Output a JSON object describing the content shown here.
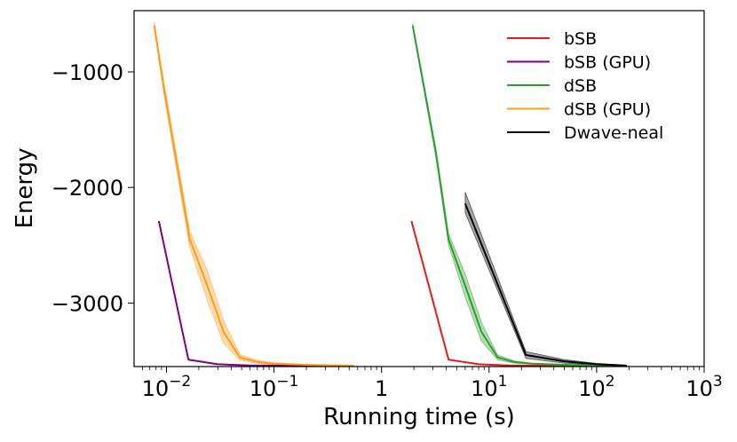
{
  "chart_data": {
    "type": "line",
    "xscale": "log",
    "xlabel": "Running time (s)",
    "ylabel": "Energy",
    "xlim": [
      0.005,
      1000
    ],
    "ylim": [
      -3550,
      -470
    ],
    "x_ticks": [
      {
        "value": 0.01,
        "base": "10",
        "exp": "−2"
      },
      {
        "value": 0.1,
        "base": "10",
        "exp": "−1"
      },
      {
        "value": 1,
        "base": "1",
        "exp": ""
      },
      {
        "value": 10,
        "base": "10",
        "exp": "1"
      },
      {
        "value": 100,
        "base": "10",
        "exp": "2"
      },
      {
        "value": 1000,
        "base": "10",
        "exp": "3"
      }
    ],
    "y_ticks": [
      {
        "value": -1000,
        "label": "−1000"
      },
      {
        "value": -2000,
        "label": "−2000"
      },
      {
        "value": -3000,
        "label": "−3000"
      }
    ],
    "legend_position": "top-right",
    "series": [
      {
        "name": "bSB",
        "color": "#e41a1c",
        "band": 0,
        "x": [
          1.9,
          4.2,
          8.0,
          15,
          40,
          100,
          190
        ],
        "y": [
          -2290,
          -3490,
          -3530,
          -3540,
          -3542,
          -3543,
          -3543
        ]
      },
      {
        "name": "bSB (GPU)",
        "color": "#800080",
        "band": 0,
        "x": [
          0.0085,
          0.016,
          0.03,
          0.06,
          0.15,
          0.55
        ],
        "y": [
          -2290,
          -3490,
          -3530,
          -3540,
          -3542,
          -3543
        ]
      },
      {
        "name": "dSB",
        "color": "#2ca02c",
        "band": 1,
        "x": [
          1.95,
          2.5,
          3.2,
          4.2,
          6.0,
          8.5,
          12.0,
          17.0,
          25,
          50,
          100,
          190
        ],
        "y": [
          -600,
          -1150,
          -1700,
          -2450,
          -2850,
          -3250,
          -3470,
          -3510,
          -3525,
          -3535,
          -3540,
          -3542
        ],
        "lower": [
          -620,
          -1180,
          -1740,
          -2500,
          -2950,
          -3330,
          -3490,
          -3520,
          -3530,
          -3538,
          -3542,
          -3544
        ],
        "upper": [
          -580,
          -1120,
          -1660,
          -2400,
          -2750,
          -3170,
          -3450,
          -3500,
          -3520,
          -3532,
          -3538,
          -3540
        ]
      },
      {
        "name": "dSB (GPU)",
        "color": "#ff9b1a",
        "band": 1,
        "x": [
          0.0077,
          0.0095,
          0.012,
          0.0165,
          0.024,
          0.034,
          0.048,
          0.07,
          0.1,
          0.2,
          0.35,
          0.55
        ],
        "y": [
          -600,
          -1150,
          -1700,
          -2450,
          -2850,
          -3250,
          -3470,
          -3510,
          -3525,
          -3535,
          -3540,
          -3542
        ],
        "lower": [
          -630,
          -1200,
          -1760,
          -2520,
          -2980,
          -3350,
          -3495,
          -3522,
          -3532,
          -3538,
          -3542,
          -3544
        ],
        "upper": [
          -570,
          -1100,
          -1640,
          -2380,
          -2720,
          -3150,
          -3445,
          -3498,
          -3518,
          -3532,
          -3538,
          -3540
        ]
      },
      {
        "name": "Dwave-neal",
        "color": "#000000",
        "band": 1,
        "x": [
          6.0,
          22,
          50,
          100,
          190
        ],
        "y": [
          -2140,
          -3450,
          -3505,
          -3530,
          -3542
        ],
        "lower": [
          -2220,
          -3480,
          -3520,
          -3538,
          -3546
        ],
        "upper": [
          -2040,
          -3420,
          -3490,
          -3522,
          -3538
        ]
      }
    ]
  }
}
